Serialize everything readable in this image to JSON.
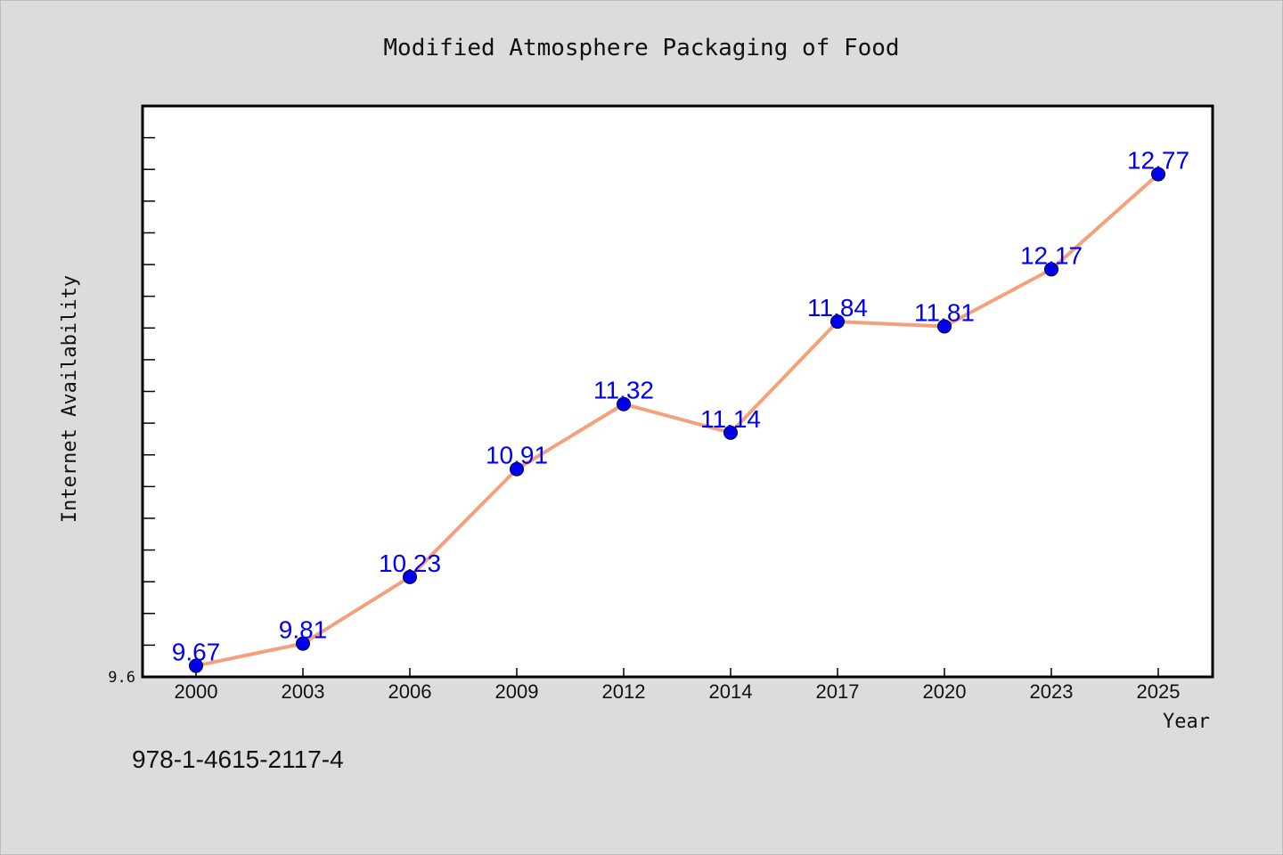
{
  "chart_data": {
    "type": "line",
    "title": "Modified Atmosphere Packaging of Food",
    "xlabel": "Year",
    "ylabel": "Internet Availability",
    "categories": [
      "2000",
      "2003",
      "2006",
      "2009",
      "2012",
      "2014",
      "2017",
      "2020",
      "2023",
      "2025"
    ],
    "series": [
      {
        "values": [
          9.67,
          9.81,
          10.23,
          10.91,
          11.32,
          11.14,
          11.84,
          11.81,
          12.17,
          12.77
        ],
        "data_labels": [
          "9.67",
          "9.81",
          "10.23",
          "10.91",
          "11.32",
          "11.14",
          "11.84",
          "11.81",
          "12.17",
          "12.77"
        ],
        "line_color": "#f4a07a",
        "marker_color": "#0000ee"
      }
    ],
    "ylim": [
      9.6,
      13.2
    ],
    "yticks_labeled": [
      "9.6"
    ],
    "grid": false,
    "legend": "none"
  },
  "footer": {
    "isbn": "978-1-4615-2117-4"
  },
  "colors": {
    "background": "#dcdcdc",
    "plot_background": "#ffffff",
    "line": "#f4a07a",
    "marker": "#0000ee",
    "label": "#0000ee"
  }
}
